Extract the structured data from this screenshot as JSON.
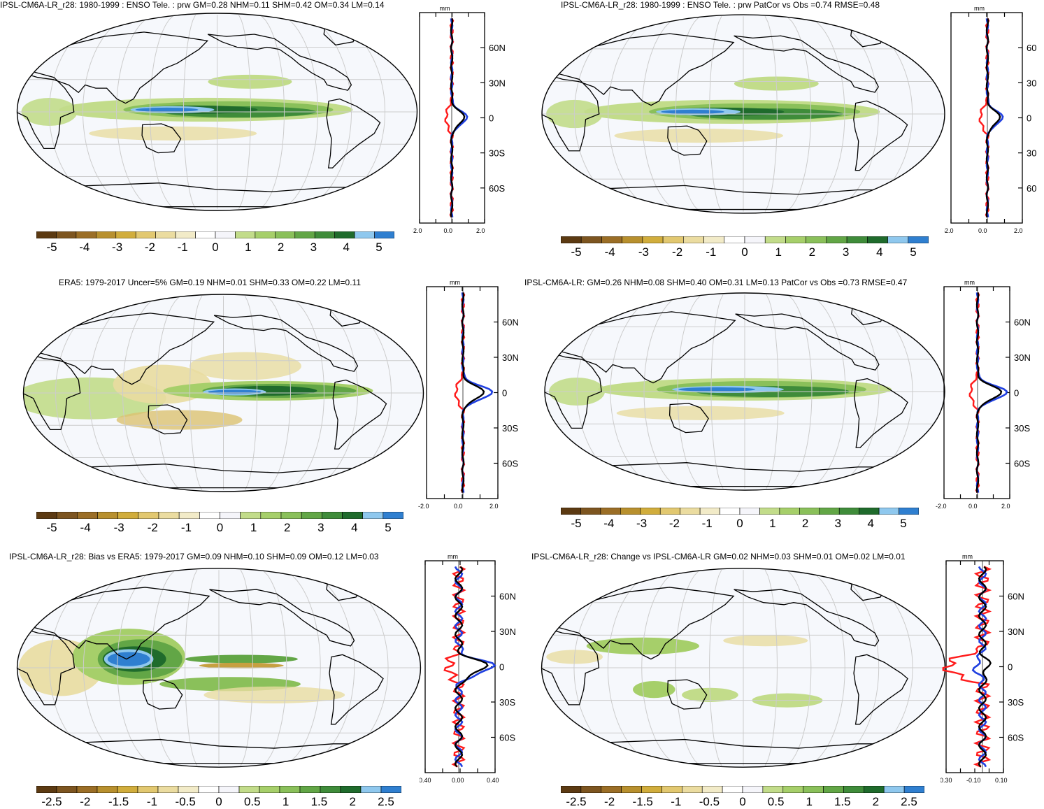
{
  "panels": [
    {
      "title": "IPSL-CM6A-LR_r28: 1980-1999 : ENSO Tele. : prw GM=0.28 NHM=0.11 SHM=0.42 OM=0.34 LM=0.14",
      "colorbar_labels": [
        "-5",
        "-4",
        "-3",
        "-2",
        "-1",
        "0",
        "1",
        "2",
        "3",
        "4",
        "5"
      ],
      "profile": {
        "unit": "mm",
        "lat_labels": [
          "60N",
          "30N",
          "0",
          "30S",
          "60S"
        ],
        "x_labels": [
          "-2.0",
          "0.0",
          "2.0"
        ]
      }
    },
    {
      "title": "IPSL-CM6A-LR_r28: 1980-1999 : ENSO Tele. : prw PatCor vs Obs =0.74 RMSE=0.48",
      "colorbar_labels": [
        "-5",
        "-4",
        "-3",
        "-2",
        "-1",
        "0",
        "1",
        "2",
        "3",
        "4",
        "5"
      ],
      "profile": {
        "unit": "mm",
        "lat_labels": [
          "60",
          "30",
          "0",
          "30",
          "60"
        ],
        "x_labels": [
          "-2.0",
          "0.0",
          "2.0"
        ]
      }
    },
    {
      "title": "ERA5: 1979-2017 Uncer=5% GM=0.19 NHM=0.01 SHM=0.33 OM=0.22 LM=0.11",
      "colorbar_labels": [
        "-5",
        "-4",
        "-3",
        "-2",
        "-1",
        "0",
        "1",
        "2",
        "3",
        "4",
        "5"
      ],
      "profile": {
        "unit": "mm",
        "lat_labels": [
          "60N",
          "30N",
          "0",
          "30S",
          "60S"
        ],
        "x_labels": [
          "-2.0",
          "0.0",
          "2.0"
        ]
      }
    },
    {
      "title": "IPSL-CM6A-LR: GM=0.26 NHM=0.08 SHM=0.40 OM=0.31 LM=0.13 PatCor vs Obs =0.73 RMSE=0.47",
      "colorbar_labels": [
        "-5",
        "-4",
        "-3",
        "-2",
        "-1",
        "0",
        "1",
        "2",
        "3",
        "4",
        "5"
      ],
      "profile": {
        "unit": "mm",
        "lat_labels": [
          "60N",
          "30N",
          "0",
          "30S",
          "60S"
        ],
        "x_labels": [
          "-2.0",
          "0.0",
          "2.0"
        ]
      }
    },
    {
      "title": "IPSL-CM6A-LR_r28: Bias vs ERA5: 1979-2017 GM=0.09 NHM=0.10 SHM=0.09 OM=0.12 LM=0.03",
      "colorbar_labels": [
        "-2.5",
        "-2",
        "-1.5",
        "-1",
        "-0.5",
        "0",
        "0.5",
        "1",
        "1.5",
        "2",
        "2.5"
      ],
      "profile": {
        "unit": "mm",
        "lat_labels": [
          "60N",
          "30N",
          "0",
          "30S",
          "60S"
        ],
        "x_labels": [
          "-0.40",
          "0.00",
          "0.40"
        ]
      }
    },
    {
      "title": "IPSL-CM6A-LR_r28: Change vs IPSL-CM6A-LR GM=0.02 NHM=0.03 SHM=0.01 OM=0.02 LM=0.01",
      "colorbar_labels": [
        "-2.5",
        "-2",
        "-1.5",
        "-1",
        "-0.5",
        "0",
        "0.5",
        "1",
        "1.5",
        "2",
        "2.5"
      ],
      "profile": {
        "unit": "mm",
        "lat_labels": [
          "60N",
          "30N",
          "0",
          "30S",
          "60S"
        ],
        "x_labels": [
          "-0.30",
          "-0.10",
          "0.10"
        ]
      }
    }
  ],
  "colors": {
    "palette": [
      "#5c3a12",
      "#7d5520",
      "#a0782c",
      "#c6a040",
      "#dcc270",
      "#e9dca0",
      "#f3ecc8",
      "#ffffff",
      "#f6f8fc",
      "#c2dc8a",
      "#a6cf6a",
      "#8ac05a",
      "#62a646",
      "#3f8c3a",
      "#1f6b2c",
      "#8fc8ee",
      "#2f7fd0"
    ],
    "ocean": "#f6f8fc",
    "obs_line": "#000000",
    "model_line": "#1f3fe0",
    "diff_line": "#ff1a1a"
  }
}
